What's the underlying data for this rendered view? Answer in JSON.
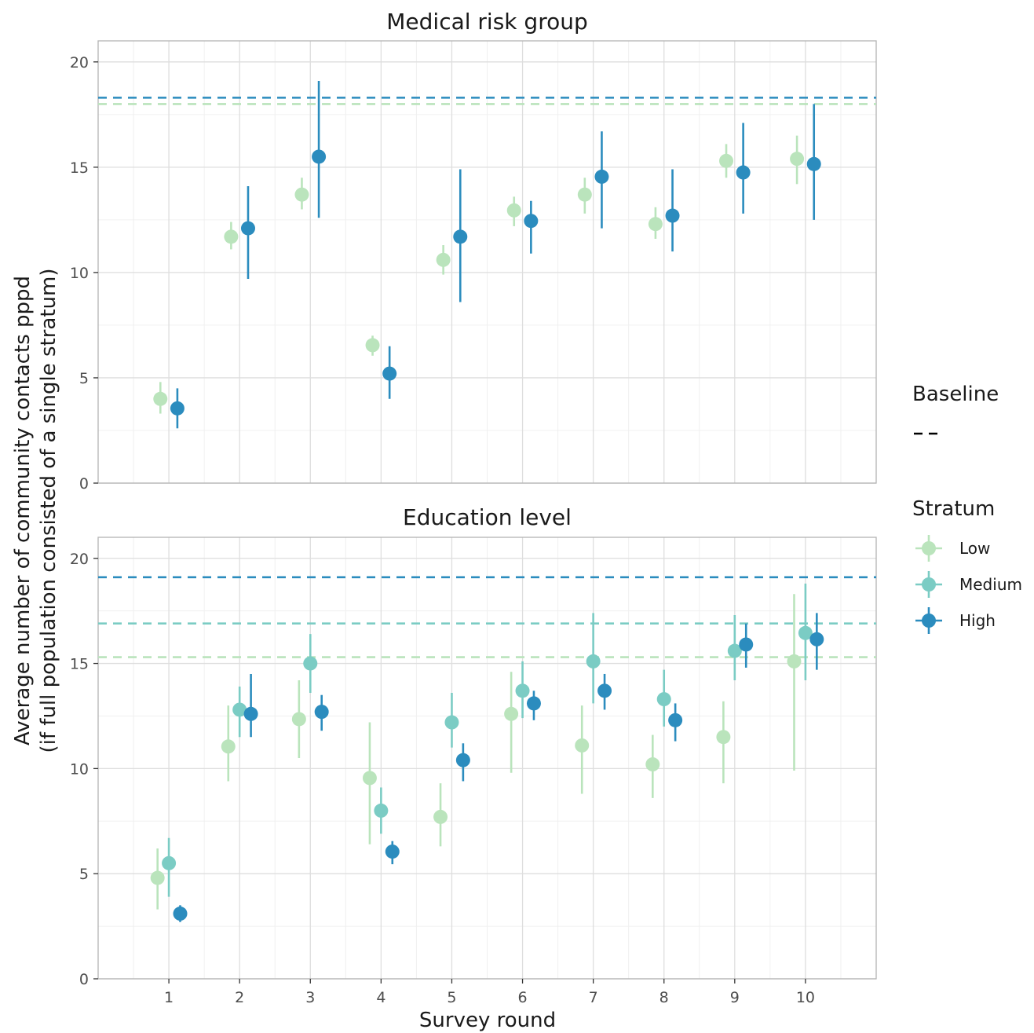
{
  "chart_data": {
    "type": "scatter",
    "x_label": "Survey round",
    "y_label_line1": "Average number of community contacts pppd",
    "y_label_line2": "(if full population consisted of a single stratum)",
    "x_ticks": [
      1,
      2,
      3,
      4,
      5,
      6,
      7,
      8,
      9,
      10
    ],
    "ylim": [
      0,
      21
    ],
    "y_ticks": [
      0,
      5,
      10,
      15,
      20
    ],
    "colors": {
      "Low": "#bae4bc",
      "Medium": "#7bccc4",
      "High": "#2b8cbe"
    },
    "legend": {
      "baseline_title": "Baseline",
      "stratum_title": "Stratum",
      "entries": [
        "Low",
        "Medium",
        "High"
      ]
    },
    "panels": [
      {
        "title": "Medical risk group",
        "baselines": [
          {
            "stratum": "Low",
            "value": 18.0
          },
          {
            "stratum": "High",
            "value": 18.3
          }
        ],
        "series": [
          {
            "stratum": "Low",
            "offset": -0.12,
            "points": [
              {
                "x": 1,
                "y": 4.0,
                "lo": 3.3,
                "hi": 4.8
              },
              {
                "x": 2,
                "y": 11.7,
                "lo": 11.1,
                "hi": 12.4
              },
              {
                "x": 3,
                "y": 13.7,
                "lo": 13.0,
                "hi": 14.5
              },
              {
                "x": 4,
                "y": 6.55,
                "lo": 6.05,
                "hi": 7.0
              },
              {
                "x": 5,
                "y": 10.6,
                "lo": 9.9,
                "hi": 11.3
              },
              {
                "x": 6,
                "y": 12.95,
                "lo": 12.2,
                "hi": 13.6
              },
              {
                "x": 7,
                "y": 13.7,
                "lo": 12.8,
                "hi": 14.5
              },
              {
                "x": 8,
                "y": 12.3,
                "lo": 11.6,
                "hi": 13.1
              },
              {
                "x": 9,
                "y": 15.3,
                "lo": 14.5,
                "hi": 16.1
              },
              {
                "x": 10,
                "y": 15.4,
                "lo": 14.2,
                "hi": 16.5
              }
            ]
          },
          {
            "stratum": "High",
            "offset": 0.12,
            "points": [
              {
                "x": 1,
                "y": 3.55,
                "lo": 2.6,
                "hi": 4.5
              },
              {
                "x": 2,
                "y": 12.1,
                "lo": 9.7,
                "hi": 14.1
              },
              {
                "x": 3,
                "y": 15.5,
                "lo": 12.6,
                "hi": 19.1
              },
              {
                "x": 4,
                "y": 5.2,
                "lo": 4.0,
                "hi": 6.5
              },
              {
                "x": 5,
                "y": 11.7,
                "lo": 8.6,
                "hi": 14.9
              },
              {
                "x": 6,
                "y": 12.45,
                "lo": 10.9,
                "hi": 13.4
              },
              {
                "x": 7,
                "y": 14.55,
                "lo": 12.1,
                "hi": 16.7
              },
              {
                "x": 8,
                "y": 12.7,
                "lo": 11.0,
                "hi": 14.9
              },
              {
                "x": 9,
                "y": 14.75,
                "lo": 12.8,
                "hi": 17.1
              },
              {
                "x": 10,
                "y": 15.15,
                "lo": 12.5,
                "hi": 18.0
              }
            ]
          }
        ]
      },
      {
        "title": "Education level",
        "baselines": [
          {
            "stratum": "Low",
            "value": 15.3
          },
          {
            "stratum": "Medium",
            "value": 16.9
          },
          {
            "stratum": "High",
            "value": 19.1
          }
        ],
        "series": [
          {
            "stratum": "Low",
            "offset": -0.16,
            "points": [
              {
                "x": 1,
                "y": 4.8,
                "lo": 3.3,
                "hi": 6.2
              },
              {
                "x": 2,
                "y": 11.05,
                "lo": 9.4,
                "hi": 13.0
              },
              {
                "x": 3,
                "y": 12.35,
                "lo": 10.5,
                "hi": 14.2
              },
              {
                "x": 4,
                "y": 9.55,
                "lo": 6.4,
                "hi": 12.2
              },
              {
                "x": 5,
                "y": 7.7,
                "lo": 6.3,
                "hi": 9.3
              },
              {
                "x": 6,
                "y": 12.6,
                "lo": 9.8,
                "hi": 14.6
              },
              {
                "x": 7,
                "y": 11.1,
                "lo": 8.8,
                "hi": 13.0
              },
              {
                "x": 8,
                "y": 10.2,
                "lo": 8.6,
                "hi": 11.6
              },
              {
                "x": 9,
                "y": 11.5,
                "lo": 9.3,
                "hi": 13.2
              },
              {
                "x": 10,
                "y": 15.1,
                "lo": 9.9,
                "hi": 18.3
              }
            ]
          },
          {
            "stratum": "Medium",
            "offset": 0.0,
            "points": [
              {
                "x": 1,
                "y": 5.5,
                "lo": 3.9,
                "hi": 6.7
              },
              {
                "x": 2,
                "y": 12.8,
                "lo": 11.5,
                "hi": 13.9
              },
              {
                "x": 3,
                "y": 15.0,
                "lo": 13.6,
                "hi": 16.4
              },
              {
                "x": 4,
                "y": 8.0,
                "lo": 6.9,
                "hi": 9.1
              },
              {
                "x": 5,
                "y": 12.2,
                "lo": 11.0,
                "hi": 13.6
              },
              {
                "x": 6,
                "y": 13.7,
                "lo": 12.4,
                "hi": 15.1
              },
              {
                "x": 7,
                "y": 15.1,
                "lo": 13.1,
                "hi": 17.4
              },
              {
                "x": 8,
                "y": 13.3,
                "lo": 12.0,
                "hi": 14.7
              },
              {
                "x": 9,
                "y": 15.6,
                "lo": 14.2,
                "hi": 17.3
              },
              {
                "x": 10,
                "y": 16.45,
                "lo": 14.2,
                "hi": 18.8
              }
            ]
          },
          {
            "stratum": "High",
            "offset": 0.16,
            "points": [
              {
                "x": 1,
                "y": 3.1,
                "lo": 2.7,
                "hi": 3.5
              },
              {
                "x": 2,
                "y": 12.6,
                "lo": 11.5,
                "hi": 14.5
              },
              {
                "x": 3,
                "y": 12.7,
                "lo": 11.8,
                "hi": 13.5
              },
              {
                "x": 4,
                "y": 6.05,
                "lo": 5.45,
                "hi": 6.55
              },
              {
                "x": 5,
                "y": 10.4,
                "lo": 9.4,
                "hi": 11.2
              },
              {
                "x": 6,
                "y": 13.1,
                "lo": 12.3,
                "hi": 13.7
              },
              {
                "x": 7,
                "y": 13.7,
                "lo": 12.8,
                "hi": 14.5
              },
              {
                "x": 8,
                "y": 12.3,
                "lo": 11.3,
                "hi": 13.1
              },
              {
                "x": 9,
                "y": 15.9,
                "lo": 14.8,
                "hi": 16.9
              },
              {
                "x": 10,
                "y": 16.15,
                "lo": 14.7,
                "hi": 17.4
              }
            ]
          }
        ]
      }
    ]
  }
}
